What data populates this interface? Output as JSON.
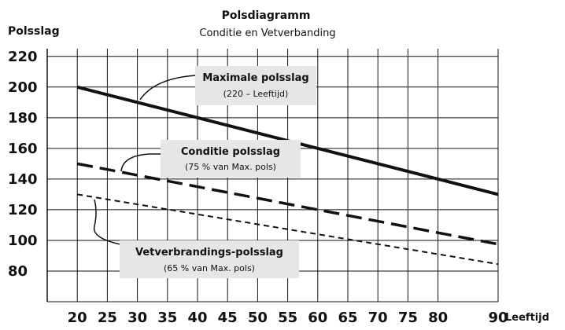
{
  "chart_data": {
    "type": "line",
    "title": "Polsdiagramm",
    "subtitle": "Conditie en Vetverbanding",
    "ylabel": "Polsslag",
    "xlabel": "Leeftijd",
    "xlim": [
      15,
      90
    ],
    "ylim": [
      60,
      225
    ],
    "x_ticks": [
      20,
      25,
      30,
      35,
      40,
      45,
      50,
      55,
      60,
      65,
      70,
      75,
      80,
      90
    ],
    "y_ticks": [
      80,
      100,
      120,
      140,
      160,
      180,
      200,
      220
    ],
    "x_tick_labels": [
      "20",
      "25",
      "30",
      "35",
      "40",
      "45",
      "50",
      "55",
      "60",
      "65",
      "70",
      "75",
      "80",
      "90"
    ],
    "y_tick_labels": [
      "80",
      "100",
      "120",
      "140",
      "160",
      "180",
      "200",
      "220"
    ],
    "grid": true,
    "series": [
      {
        "name": "Maximale polsslag",
        "note": "(220 – Leeftijd)",
        "style": "solid",
        "x": [
          20,
          90
        ],
        "y": [
          200,
          130
        ]
      },
      {
        "name": "Conditie polsslag",
        "note": "(75 % van Max. pols)",
        "style": "long-dash",
        "x": [
          20,
          90
        ],
        "y": [
          150,
          97.5
        ]
      },
      {
        "name": "Vetverbrandings-polsslag",
        "note": "(65 % van Max. pols)",
        "style": "short-dash",
        "x": [
          20,
          90
        ],
        "y": [
          130,
          84.5
        ]
      }
    ]
  },
  "colors": {
    "line": "#111111",
    "label_box": "#e6e6e6"
  }
}
